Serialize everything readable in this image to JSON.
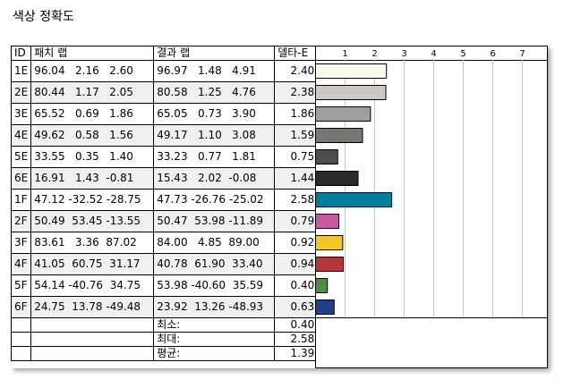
{
  "title": "색상 정확도",
  "headers": {
    "id": "ID",
    "patch": "패치 랩",
    "result": "결과 랩",
    "delta": "델타-E"
  },
  "axis_ticks": [
    "1",
    "2",
    "3",
    "4",
    "5",
    "6",
    "7"
  ],
  "rows": [
    {
      "id": "1E",
      "patch": "96.04   2.16   2.60",
      "result": "96.97   1.48   4.91",
      "delta": "2.40",
      "color": "#fbf8f0"
    },
    {
      "id": "2E",
      "patch": "80.44   1.17   2.05",
      "result": "80.58   1.25   4.76",
      "delta": "2.38",
      "color": "#ccc8c4"
    },
    {
      "id": "3E",
      "patch": "65.52   0.69   1.86",
      "result": "65.05   0.73   3.90",
      "delta": "1.86",
      "color": "#a19f9b"
    },
    {
      "id": "4E",
      "patch": "49.62   0.58   1.56",
      "result": "49.17   1.10   3.08",
      "delta": "1.59",
      "color": "#777673"
    },
    {
      "id": "5E",
      "patch": "33.55   0.35   1.40",
      "result": "33.23   0.77   1.81",
      "delta": "0.75",
      "color": "#4e4e4d"
    },
    {
      "id": "6E",
      "patch": "16.91   1.43  -0.81",
      "result": "15.43   2.02  -0.08",
      "delta": "1.44",
      "color": "#2b2b2b"
    },
    {
      "id": "1F",
      "patch": "47.12 -32.52 -28.75",
      "result": "47.73 -26.76 -25.02",
      "delta": "2.58",
      "color": "#007d9a"
    },
    {
      "id": "2F",
      "patch": "50.49  53.45 -13.55",
      "result": "50.47  53.98 -11.89",
      "delta": "0.79",
      "color": "#c55a9e"
    },
    {
      "id": "3F",
      "patch": "83.61   3.36  87.02",
      "result": "84.00   4.85  89.00",
      "delta": "0.92",
      "color": "#f2c72a"
    },
    {
      "id": "4F",
      "patch": "41.05  60.75  31.17",
      "result": "40.78  61.90  33.40",
      "delta": "0.94",
      "color": "#b5353a"
    },
    {
      "id": "5F",
      "patch": "54.14 -40.76  34.75",
      "result": "53.98 -40.60  35.59",
      "delta": "0.40",
      "color": "#4b8d44"
    },
    {
      "id": "6F",
      "patch": "24.75  13.78 -49.48",
      "result": "23.92  13.26 -48.93",
      "delta": "0.63",
      "color": "#213f8a"
    }
  ],
  "summary": [
    {
      "label": "최소:",
      "value": "0.40"
    },
    {
      "label": "최대:",
      "value": "2.58"
    },
    {
      "label": "평균:",
      "value": "1.39"
    }
  ],
  "chart_data": {
    "type": "bar",
    "orientation": "horizontal",
    "categories": [
      "1E",
      "2E",
      "3E",
      "4E",
      "5E",
      "6E",
      "1F",
      "2F",
      "3F",
      "4F",
      "5F",
      "6F"
    ],
    "values": [
      2.4,
      2.38,
      1.86,
      1.59,
      0.75,
      1.44,
      2.58,
      0.79,
      0.92,
      0.94,
      0.4,
      0.63
    ],
    "xlim": [
      0,
      7.8
    ],
    "grid": true
  }
}
